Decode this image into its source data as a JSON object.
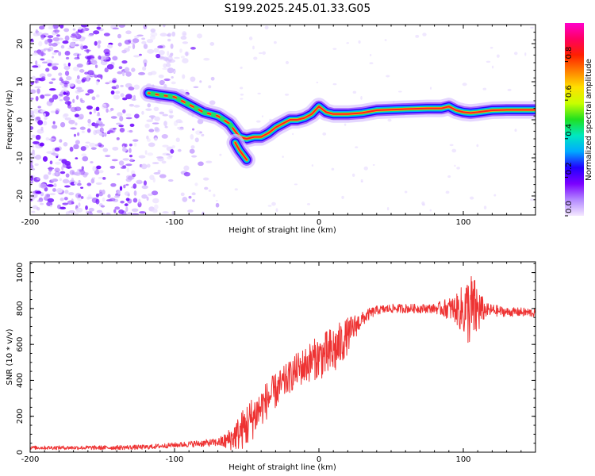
{
  "title": "S199.2025.245.01.33.G05",
  "chart_data": [
    {
      "type": "heatmap",
      "name": "spectrogram",
      "xlabel": "Height of straight line (km)",
      "ylabel": "Frequency (Hz)",
      "xlim": [
        -200,
        150
      ],
      "ylim": [
        -25,
        25
      ],
      "xticks": [
        -200,
        -100,
        0,
        100
      ],
      "yticks": [
        -20,
        -10,
        0,
        10,
        20
      ],
      "ridge": {
        "x": [
          -118,
          -110,
          -100,
          -90,
          -80,
          -70,
          -62,
          -58,
          -55,
          -50,
          -45,
          -40,
          -35,
          -30,
          -25,
          -20,
          -15,
          -10,
          -5,
          0,
          5,
          10,
          20,
          30,
          40,
          60,
          75,
          80,
          85,
          90,
          95,
          100,
          105,
          110,
          120,
          130,
          140,
          150
        ],
        "y": [
          7,
          6.5,
          6,
          4,
          2,
          1,
          -1,
          -3,
          -4.5,
          -5,
          -4.5,
          -4.5,
          -3.5,
          -2,
          -1,
          0,
          0,
          0.5,
          1.5,
          3.5,
          2,
          1.5,
          1.5,
          1.8,
          2.5,
          2.8,
          3,
          3,
          3,
          3.5,
          2.5,
          2,
          1.8,
          2,
          2.5,
          2.6,
          2.6,
          2.6
        ]
      },
      "branch": {
        "x": [
          -58,
          -55,
          -52,
          -50
        ],
        "y": [
          -6,
          -8,
          -9.5,
          -10.5
        ]
      },
      "noise_region_x": [
        -200,
        -70
      ],
      "colorbar": {
        "label": "Normalized spectral amplitude",
        "range": [
          0,
          1
        ],
        "ticks": [
          "0.0",
          "0.2",
          "0.4",
          "0.6",
          "0.8"
        ],
        "colors": [
          "#f4e8ff",
          "#b388ff",
          "#7b00ff",
          "#2200ff",
          "#00aaff",
          "#00e8c0",
          "#20e020",
          "#c8ff00",
          "#ffe000",
          "#ff8000",
          "#ff2000",
          "#ff0060",
          "#ff00cc"
        ]
      }
    },
    {
      "type": "line",
      "name": "snr",
      "xlabel": "Height of straight line (km)",
      "ylabel": "SNR (10 * v/v)",
      "xlim": [
        -200,
        150
      ],
      "ylim": [
        0,
        1060
      ],
      "xticks": [
        -200,
        -100,
        0,
        100
      ],
      "yticks": [
        0,
        200,
        400,
        600,
        800,
        1000
      ],
      "color": "#ee3333",
      "envelope": {
        "x": [
          -200,
          -150,
          -120,
          -100,
          -90,
          -80,
          -70,
          -65,
          -60,
          -55,
          -50,
          -45,
          -40,
          -35,
          -30,
          -25,
          -20,
          -15,
          -10,
          -5,
          0,
          5,
          10,
          15,
          20,
          25,
          30,
          35,
          40,
          50,
          60,
          70,
          80,
          90,
          100,
          110,
          120,
          130,
          140,
          150
        ],
        "y": [
          25,
          25,
          28,
          40,
          45,
          50,
          55,
          60,
          80,
          110,
          150,
          200,
          250,
          300,
          340,
          380,
          420,
          460,
          480,
          510,
          530,
          540,
          560,
          600,
          650,
          700,
          740,
          770,
          790,
          800,
          800,
          800,
          800,
          800,
          790,
          790,
          790,
          780,
          780,
          775
        ]
      },
      "noise_amplitude": {
        "x": [
          -200,
          -100,
          -70,
          -60,
          -50,
          -40,
          -20,
          0,
          10,
          20,
          30,
          40,
          80,
          95,
          100,
          105,
          110,
          115,
          130,
          150
        ],
        "y": [
          10,
          14,
          22,
          70,
          130,
          110,
          90,
          120,
          150,
          100,
          40,
          25,
          25,
          80,
          150,
          220,
          150,
          40,
          25,
          25
        ]
      }
    }
  ]
}
